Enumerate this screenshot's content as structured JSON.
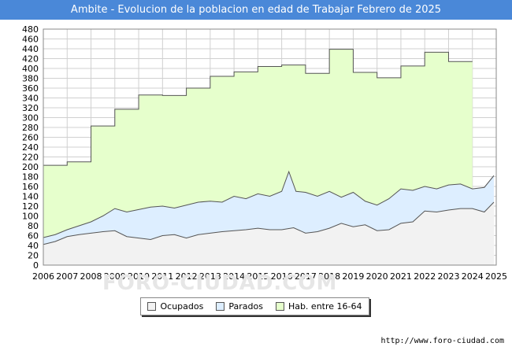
{
  "title": "Ambite - Evolucion de la poblacion en edad de Trabajar Febrero de 2025",
  "source": "http://www.foro-ciudad.com",
  "watermark": "FORO-CIUDAD.COM",
  "colors": {
    "title_bg": "#4a88d8",
    "ocupados": "#f2f2f2",
    "parados": "#ddeeff",
    "hab": "#e6ffcc",
    "line": "#555555"
  },
  "legend": [
    {
      "key": "ocupados",
      "label": "Ocupados"
    },
    {
      "key": "parados",
      "label": "Parados"
    },
    {
      "key": "hab",
      "label": "Hab. entre 16-64"
    }
  ],
  "chart_data": {
    "type": "area",
    "title": "Ambite - Evolucion de la poblacion en edad de Trabajar Febrero de 2025",
    "xlabel": "",
    "ylabel": "",
    "xlim": [
      2006,
      2025
    ],
    "ylim": [
      0,
      480
    ],
    "y_ticks": [
      0,
      20,
      40,
      60,
      80,
      100,
      120,
      140,
      160,
      180,
      200,
      220,
      240,
      260,
      280,
      300,
      320,
      340,
      360,
      380,
      400,
      420,
      440,
      460,
      480
    ],
    "x_ticks": [
      "2006",
      "2007",
      "2008",
      "2009",
      "2010",
      "2011",
      "2012",
      "2013",
      "2014",
      "2015",
      "2016",
      "2017",
      "2018",
      "2019",
      "2020",
      "2021",
      "2022",
      "2023",
      "2024",
      "2025"
    ],
    "grid": true,
    "series": [
      {
        "name": "Hab. entre 16-64",
        "step": true,
        "x": [
          2006,
          2007,
          2008,
          2009,
          2010,
          2011,
          2012,
          2013,
          2014,
          2015,
          2016,
          2017,
          2018,
          2019,
          2020,
          2021,
          2022,
          2023,
          2024.0
        ],
        "values": [
          203,
          210,
          283,
          317,
          346,
          345,
          360,
          384,
          393,
          404,
          407,
          390,
          439,
          392,
          381,
          405,
          433,
          414,
          414
        ]
      },
      {
        "name": "Parados",
        "x": [
          2006,
          2006.5,
          2007,
          2007.5,
          2008,
          2008.5,
          2009,
          2009.5,
          2010,
          2010.5,
          2011,
          2011.5,
          2012,
          2012.5,
          2013,
          2013.5,
          2014,
          2014.5,
          2015,
          2015.5,
          2016,
          2016.3,
          2016.6,
          2017,
          2017.5,
          2018,
          2018.5,
          2019,
          2019.5,
          2020,
          2020.5,
          2021,
          2021.5,
          2022,
          2022.5,
          2023,
          2023.5,
          2024,
          2024.5,
          2024.9
        ],
        "values": [
          56,
          62,
          72,
          80,
          88,
          100,
          115,
          108,
          113,
          118,
          120,
          116,
          122,
          128,
          130,
          128,
          140,
          135,
          145,
          140,
          150,
          190,
          150,
          148,
          140,
          150,
          138,
          148,
          130,
          122,
          135,
          155,
          152,
          160,
          155,
          163,
          165,
          155,
          158,
          182
        ]
      },
      {
        "name": "Ocupados",
        "x": [
          2006,
          2006.5,
          2007,
          2007.5,
          2008,
          2008.5,
          2009,
          2009.5,
          2010,
          2010.5,
          2011,
          2011.5,
          2012,
          2012.5,
          2013,
          2013.5,
          2014,
          2014.5,
          2015,
          2015.5,
          2016,
          2016.5,
          2017,
          2017.5,
          2018,
          2018.5,
          2019,
          2019.5,
          2020,
          2020.5,
          2021,
          2021.5,
          2022,
          2022.5,
          2023,
          2023.5,
          2024,
          2024.5,
          2024.9
        ],
        "values": [
          42,
          48,
          58,
          62,
          65,
          68,
          70,
          58,
          55,
          52,
          60,
          62,
          55,
          62,
          65,
          68,
          70,
          72,
          75,
          72,
          72,
          76,
          65,
          68,
          75,
          85,
          78,
          82,
          70,
          72,
          85,
          88,
          110,
          108,
          112,
          115,
          115,
          108,
          128
        ]
      }
    ]
  }
}
